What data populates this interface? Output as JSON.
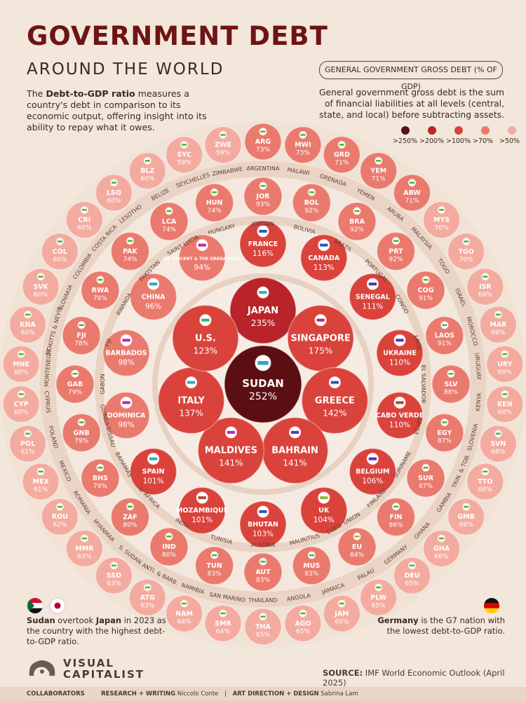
{
  "header": {
    "title": "GOVERNMENT DEBT",
    "subtitle": "AROUND THE WORLD",
    "intro_pre": "The ",
    "intro_bold": "Debt-to-GDP ratio",
    "intro_post": " measures a country's debt in comparison to its economic output, offering insight into its ability to repay what it owes."
  },
  "legend": {
    "title": "GENERAL GOVERNMENT GROSS DEBT (% OF GDP)",
    "description": "General government gross debt is the sum of financial liabilities at all levels (central, state, and local) before subtracting assets.",
    "buckets": [
      {
        "label": ">250%",
        "color": "#5c0f12"
      },
      {
        "label": ">200%",
        "color": "#b8242a"
      },
      {
        "label": ">100%",
        "color": "#d9433c"
      },
      {
        "label": ">70%",
        "color": "#ea7a6e"
      },
      {
        "label": ">50%",
        "color": "#f4ab9f"
      }
    ]
  },
  "notes": {
    "left_bold": "Sudan",
    "left_mid": " overtook ",
    "left_bold2": "Japan",
    "left_post": " in 2023 as the country with the highest debt-to-GDP ratio.",
    "right_bold": "Germany",
    "right_post": " is the G7 nation with the lowest debt-to-GDP ratio."
  },
  "brand": {
    "line1": "VISUAL",
    "line2": "CAPITALIST"
  },
  "source": {
    "label": "SOURCE:",
    "text": " IMF World Economic Outlook (April 2025)"
  },
  "footer": {
    "collaborators": "COLLABORATORS",
    "research_label": "RESEARCH + WRITING",
    "research_name": "Niccolo Conte",
    "art_label": "ART DIRECTION + DESIGN",
    "art_name": "Sabrina Lam"
  },
  "chart_data": {
    "type": "bubble",
    "title": "Government Debt Around the World",
    "unit": "% of GDP",
    "rings": [
      {
        "ring": 0,
        "countries": [
          {
            "code": "SUDAN",
            "value": 252
          }
        ]
      },
      {
        "ring": 1,
        "countries": [
          {
            "code": "JAPAN",
            "value": 235
          },
          {
            "code": "SINGAPORE",
            "value": 175
          },
          {
            "code": "GREECE",
            "value": 142
          },
          {
            "code": "BAHRAIN",
            "value": 141
          },
          {
            "code": "MALDIVES",
            "value": 141
          },
          {
            "code": "ITALY",
            "value": 137
          },
          {
            "code": "U.S.",
            "value": 123
          }
        ]
      },
      {
        "ring": 2,
        "countries": [
          {
            "code": "FRANCE",
            "value": 116
          },
          {
            "code": "CANADA",
            "value": 113
          },
          {
            "code": "SENEGAL",
            "value": 111
          },
          {
            "code": "UKRAINE",
            "value": 110
          },
          {
            "code": "CABO VERDE",
            "value": 110
          },
          {
            "code": "BELGIUM",
            "value": 106
          },
          {
            "code": "UK",
            "value": 104
          },
          {
            "code": "BHUTAN",
            "value": 103
          },
          {
            "code": "MOZAMBIQUE",
            "value": 101
          },
          {
            "code": "SPAIN",
            "value": 101
          },
          {
            "code": "DOMINICA",
            "value": 98
          },
          {
            "code": "BARBADOS",
            "value": 98
          },
          {
            "code": "CHINA",
            "value": 96
          },
          {
            "code": "ST. VINCENT & THE GRENADINES",
            "value": 94
          }
        ]
      },
      {
        "ring": 3,
        "countries": [
          {
            "code": "JOR",
            "value": 93,
            "label": "JORDAN"
          },
          {
            "code": "BOL",
            "value": 92,
            "label": "BOLIVIA"
          },
          {
            "code": "BRA",
            "value": 92,
            "label": "BRAZIL"
          },
          {
            "code": "PRT",
            "value": 92,
            "label": "PORTUGAL"
          },
          {
            "code": "COG",
            "value": 91,
            "label": "CONGO"
          },
          {
            "code": "LAOS",
            "value": 91,
            "label": "LAOS"
          },
          {
            "code": "SLV",
            "value": 88,
            "label": "EL SALVADOR"
          },
          {
            "code": "EGY",
            "value": 87,
            "label": "EGYPT"
          },
          {
            "code": "SUR",
            "value": 87,
            "label": "SURINAME"
          },
          {
            "code": "FIN",
            "value": 86,
            "label": "FINLAND"
          },
          {
            "code": "EU",
            "value": 84,
            "label": "EURO. UNION"
          },
          {
            "code": "MUS",
            "value": 83,
            "label": "MAURITIUS"
          },
          {
            "code": "AUT",
            "value": 83,
            "label": "AUSTRIA"
          },
          {
            "code": "TUN",
            "value": 83,
            "label": "TUNISIA"
          },
          {
            "code": "IND",
            "value": 80,
            "label": "INDIA"
          },
          {
            "code": "ZAF",
            "value": 80,
            "label": "S. AFRICA"
          },
          {
            "code": "BHS",
            "value": 79,
            "label": "BAHAMAS"
          },
          {
            "code": "GNB",
            "value": 79,
            "label": "GUINEA-BISSAU"
          },
          {
            "code": "GAB",
            "value": 79,
            "label": "GABON"
          },
          {
            "code": "FJI",
            "value": 78,
            "label": "FIJI"
          },
          {
            "code": "RWA",
            "value": 78,
            "label": "RWANDA"
          },
          {
            "code": "PAK",
            "value": 74,
            "label": "PAKISTAN"
          },
          {
            "code": "LCA",
            "value": 74,
            "label": "SAINT LUCIA"
          },
          {
            "code": "HUN",
            "value": 74,
            "label": "HUNGARY"
          }
        ]
      },
      {
        "ring": 4,
        "countries": [
          {
            "code": "ARG",
            "value": 73,
            "label": "ARGENTINA"
          },
          {
            "code": "MWI",
            "value": 73,
            "label": "MALAWI"
          },
          {
            "code": "GRD",
            "value": 71,
            "label": "GRENADA"
          },
          {
            "code": "YEM",
            "value": 71,
            "label": "YEMEN"
          },
          {
            "code": "ABW",
            "value": 71,
            "label": "ARUBA"
          },
          {
            "code": "MYS",
            "value": 70,
            "label": "MALAYSIA"
          },
          {
            "code": "TGO",
            "value": 70,
            "label": "TOGO"
          },
          {
            "code": "ISR",
            "value": 69,
            "label": "ISRAEL"
          },
          {
            "code": "MAR",
            "value": 69,
            "label": "MOROCCO"
          },
          {
            "code": "URY",
            "value": 69,
            "label": "URUGUAY"
          },
          {
            "code": "KEN",
            "value": 68,
            "label": "KENYA"
          },
          {
            "code": "SVN",
            "value": 68,
            "label": "SLOVENIA"
          },
          {
            "code": "TTO",
            "value": 68,
            "label": "TRIN. & TOB."
          },
          {
            "code": "GMB",
            "value": 68,
            "label": "GAMBIA"
          },
          {
            "code": "GHA",
            "value": 66,
            "label": "GHANA"
          },
          {
            "code": "DEU",
            "value": 65,
            "label": "GERMANY"
          },
          {
            "code": "PLW",
            "value": 65,
            "label": "PALAU"
          },
          {
            "code": "JAM",
            "value": 65,
            "label": "JAMAICA"
          },
          {
            "code": "AGO",
            "value": 65,
            "label": "ANGOLA"
          },
          {
            "code": "THA",
            "value": 65,
            "label": "THAILAND"
          },
          {
            "code": "SMR",
            "value": 64,
            "label": "SAN MARINO"
          },
          {
            "code": "NAM",
            "value": 64,
            "label": "NAMIBIA"
          },
          {
            "code": "ATG",
            "value": 63,
            "label": "ANTI. & BARB."
          },
          {
            "code": "SSD",
            "value": 63,
            "label": "S. SUDAN"
          },
          {
            "code": "MMR",
            "value": 63,
            "label": "MYANMAR"
          },
          {
            "code": "ROU",
            "value": 62,
            "label": "ROMANIA"
          },
          {
            "code": "MEX",
            "value": 61,
            "label": "MEXICO"
          },
          {
            "code": "POL",
            "value": 61,
            "label": "POLAND"
          },
          {
            "code": "CYP",
            "value": 60,
            "label": "CYPRUS"
          },
          {
            "code": "MNE",
            "value": 60,
            "label": "MONTENEGRO"
          },
          {
            "code": "KNA",
            "value": 60,
            "label": "ST. KITTS & NEVIS"
          },
          {
            "code": "SVK",
            "value": 60,
            "label": "SLOVAKIA"
          },
          {
            "code": "COL",
            "value": 60,
            "label": "COLOMBIA"
          },
          {
            "code": "CRI",
            "value": 60,
            "label": "COSTA RICA"
          },
          {
            "code": "LSO",
            "value": 60,
            "label": "LESOTHO"
          },
          {
            "code": "BLZ",
            "value": 60,
            "label": "BELIZE"
          },
          {
            "code": "SYC",
            "value": 59,
            "label": "SEYCHELLES"
          },
          {
            "code": "ZWE",
            "value": 59,
            "label": "ZIMBABWE"
          }
        ]
      }
    ]
  }
}
